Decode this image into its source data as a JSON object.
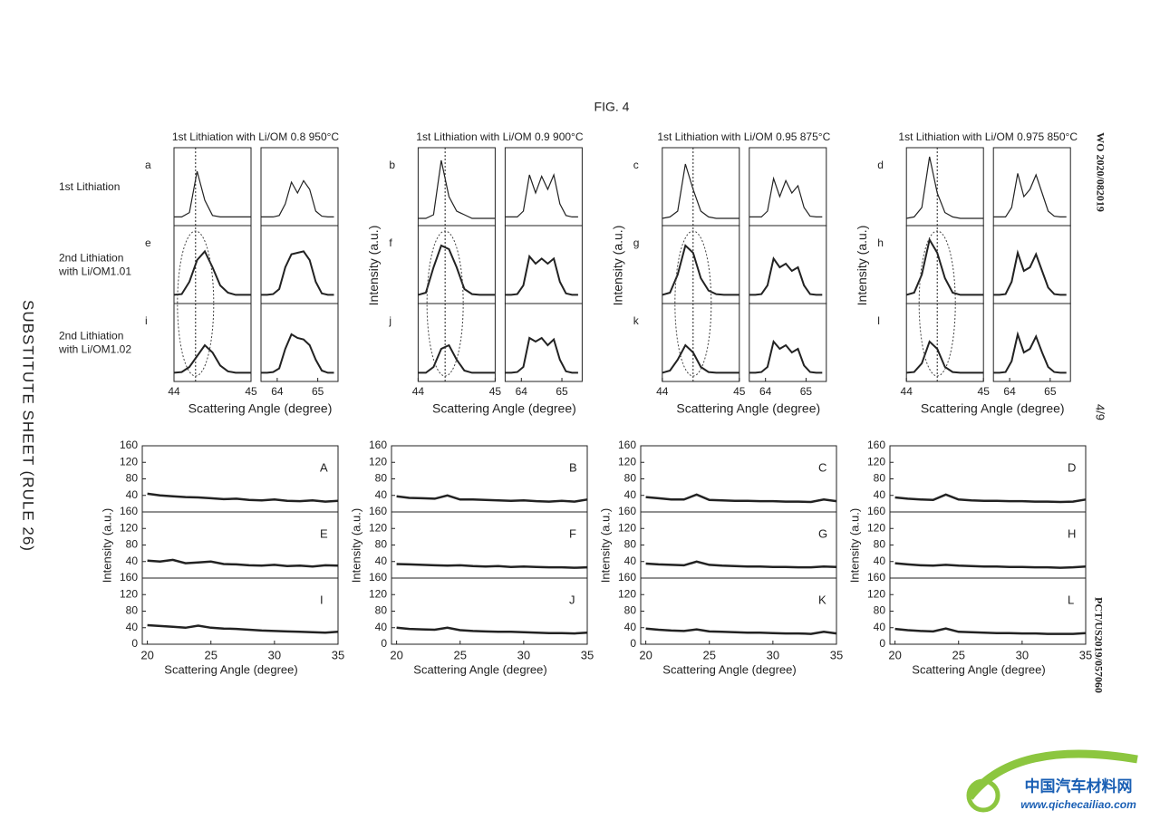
{
  "header": {
    "figure": "FIG. 4",
    "left_margin": "SUBSTITUTE SHEET (RULE 26)",
    "pub_number": "WO 2020/082019",
    "sheet": "4/9",
    "app_number": "PCT/US2019/057060"
  },
  "watermark": {
    "name": "中国汽车材料网",
    "url": "www.qichecailiao.com"
  },
  "row_labels": [
    [
      "1st Lithiation"
    ],
    [
      "2nd Lithiation",
      "with Li/OM1.01"
    ],
    [
      "2nd Lithiation",
      "with Li/OM1.02"
    ]
  ],
  "chart_data": [
    {
      "type": "line",
      "title": "1st Lithiation with Li/OM 0.8 950°C",
      "xlabel": "Scattering Angle (degree)",
      "panels": [
        "a",
        "e",
        "i"
      ],
      "color": "#222",
      "ylim": [
        0,
        1
      ],
      "ref_x": 44.28,
      "left": {
        "xlim": [
          44,
          45
        ],
        "xticks": [
          44,
          45
        ],
        "x": [
          44,
          44.1,
          44.2,
          44.3,
          44.4,
          44.5,
          44.6,
          44.7,
          44.8,
          44.9,
          45
        ],
        "series": [
          {
            "values": [
              0.12,
              0.12,
              0.18,
              0.75,
              0.35,
              0.14,
              0.12,
              0.12,
              0.12,
              0.12,
              0.12
            ]
          },
          {
            "values": [
              0.12,
              0.13,
              0.3,
              0.6,
              0.72,
              0.5,
              0.25,
              0.15,
              0.12,
              0.12,
              0.12
            ]
          },
          {
            "values": [
              0.12,
              0.13,
              0.2,
              0.35,
              0.5,
              0.4,
              0.22,
              0.14,
              0.12,
              0.12,
              0.12
            ]
          }
        ]
      },
      "right": {
        "xlim": [
          63.6,
          65.5
        ],
        "xticks": [
          64,
          65
        ],
        "x": [
          63.6,
          63.75,
          63.9,
          64.05,
          64.2,
          64.35,
          64.5,
          64.65,
          64.8,
          64.95,
          65.1,
          65.25,
          65.4
        ],
        "series": [
          {
            "values": [
              0.12,
              0.12,
              0.12,
              0.14,
              0.3,
              0.6,
              0.45,
              0.62,
              0.5,
              0.2,
              0.13,
              0.12,
              0.12
            ]
          },
          {
            "values": [
              0.12,
              0.12,
              0.13,
              0.2,
              0.5,
              0.68,
              0.7,
              0.72,
              0.6,
              0.3,
              0.14,
              0.12,
              0.12
            ]
          },
          {
            "values": [
              0.12,
              0.12,
              0.13,
              0.18,
              0.45,
              0.65,
              0.6,
              0.58,
              0.5,
              0.3,
              0.15,
              0.12,
              0.12
            ]
          }
        ]
      }
    },
    {
      "type": "line",
      "title": "1st Lithiation with Li/OM 0.9 900°C",
      "xlabel": "Scattering Angle (degree)",
      "ylabel": "Intensity (a.u.)",
      "panels": [
        "b",
        "f",
        "j"
      ],
      "color": "#222",
      "ylim": [
        0,
        1
      ],
      "ref_x": 44.35,
      "left": {
        "xlim": [
          44,
          45
        ],
        "xticks": [
          44,
          45
        ],
        "x": [
          44,
          44.1,
          44.2,
          44.3,
          44.4,
          44.5,
          44.6,
          44.7,
          44.8,
          44.9,
          45
        ],
        "series": [
          {
            "values": [
              0.1,
              0.1,
              0.15,
              0.9,
              0.4,
              0.2,
              0.15,
              0.1,
              0.1,
              0.1,
              0.1
            ]
          },
          {
            "values": [
              0.12,
              0.15,
              0.5,
              0.8,
              0.75,
              0.5,
              0.2,
              0.13,
              0.12,
              0.12,
              0.12
            ]
          },
          {
            "values": [
              0.12,
              0.12,
              0.2,
              0.45,
              0.5,
              0.3,
              0.15,
              0.12,
              0.12,
              0.12,
              0.12
            ]
          }
        ]
      },
      "right": {
        "xlim": [
          63.6,
          65.5
        ],
        "xticks": [
          64,
          65
        ],
        "x": [
          63.6,
          63.75,
          63.9,
          64.05,
          64.2,
          64.35,
          64.5,
          64.65,
          64.8,
          64.95,
          65.1,
          65.25,
          65.4
        ],
        "series": [
          {
            "values": [
              0.12,
              0.12,
              0.12,
              0.2,
              0.7,
              0.45,
              0.68,
              0.5,
              0.7,
              0.3,
              0.14,
              0.12,
              0.12
            ]
          },
          {
            "values": [
              0.12,
              0.12,
              0.13,
              0.25,
              0.65,
              0.55,
              0.62,
              0.55,
              0.62,
              0.3,
              0.14,
              0.12,
              0.12
            ]
          },
          {
            "values": [
              0.12,
              0.12,
              0.13,
              0.2,
              0.6,
              0.55,
              0.6,
              0.5,
              0.58,
              0.3,
              0.14,
              0.12,
              0.12
            ]
          }
        ]
      }
    },
    {
      "type": "line",
      "title": "1st Lithiation with Li/OM 0.95 875°C",
      "xlabel": "Scattering Angle (degree)",
      "ylabel": "Intensity (a.u.)",
      "panels": [
        "c",
        "g",
        "k"
      ],
      "color": "#222",
      "ylim": [
        0,
        1
      ],
      "ref_x": 44.4,
      "left": {
        "xlim": [
          44,
          45
        ],
        "xticks": [
          44,
          45
        ],
        "x": [
          44,
          44.1,
          44.2,
          44.3,
          44.4,
          44.5,
          44.6,
          44.7,
          44.8,
          44.9,
          45
        ],
        "series": [
          {
            "values": [
              0.1,
              0.12,
              0.2,
              0.85,
              0.5,
              0.2,
              0.12,
              0.1,
              0.1,
              0.1,
              0.1
            ]
          },
          {
            "values": [
              0.12,
              0.15,
              0.4,
              0.8,
              0.7,
              0.35,
              0.18,
              0.13,
              0.12,
              0.12,
              0.12
            ]
          },
          {
            "values": [
              0.12,
              0.15,
              0.3,
              0.5,
              0.4,
              0.2,
              0.13,
              0.12,
              0.12,
              0.12,
              0.12
            ]
          }
        ]
      },
      "right": {
        "xlim": [
          63.6,
          65.5
        ],
        "xticks": [
          64,
          65
        ],
        "x": [
          63.6,
          63.75,
          63.9,
          64.05,
          64.2,
          64.35,
          64.5,
          64.65,
          64.8,
          64.95,
          65.1,
          65.25,
          65.4
        ],
        "series": [
          {
            "values": [
              0.12,
              0.12,
              0.12,
              0.2,
              0.65,
              0.4,
              0.62,
              0.45,
              0.55,
              0.25,
              0.13,
              0.12,
              0.12
            ]
          },
          {
            "values": [
              0.12,
              0.12,
              0.13,
              0.25,
              0.62,
              0.5,
              0.55,
              0.45,
              0.5,
              0.25,
              0.13,
              0.12,
              0.12
            ]
          },
          {
            "values": [
              0.12,
              0.12,
              0.13,
              0.2,
              0.55,
              0.45,
              0.5,
              0.4,
              0.45,
              0.22,
              0.13,
              0.12,
              0.12
            ]
          }
        ]
      }
    },
    {
      "type": "line",
      "title": "1st Lithiation with Li/OM 0.975 850°C",
      "xlabel": "Scattering Angle (degree)",
      "ylabel": "Intensity (a.u.)",
      "panels": [
        "d",
        "h",
        "l"
      ],
      "color": "#222",
      "ylim": [
        0,
        1
      ],
      "ref_x": 44.4,
      "left": {
        "xlim": [
          44,
          45
        ],
        "xticks": [
          44,
          45
        ],
        "x": [
          44,
          44.1,
          44.2,
          44.3,
          44.4,
          44.5,
          44.6,
          44.7,
          44.8,
          44.9,
          45
        ],
        "series": [
          {
            "values": [
              0.1,
              0.12,
              0.25,
              0.95,
              0.45,
              0.18,
              0.12,
              0.1,
              0.1,
              0.1,
              0.1
            ]
          },
          {
            "values": [
              0.12,
              0.15,
              0.4,
              0.88,
              0.7,
              0.35,
              0.15,
              0.12,
              0.12,
              0.12,
              0.12
            ]
          },
          {
            "values": [
              0.12,
              0.13,
              0.25,
              0.55,
              0.45,
              0.2,
              0.13,
              0.12,
              0.12,
              0.12,
              0.12
            ]
          }
        ]
      },
      "right": {
        "xlim": [
          63.6,
          65.5
        ],
        "xticks": [
          64,
          65
        ],
        "x": [
          63.6,
          63.75,
          63.9,
          64.05,
          64.2,
          64.35,
          64.5,
          64.65,
          64.8,
          64.95,
          65.1,
          65.25,
          65.4
        ],
        "series": [
          {
            "values": [
              0.12,
              0.12,
              0.12,
              0.25,
              0.72,
              0.4,
              0.5,
              0.7,
              0.45,
              0.2,
              0.13,
              0.12,
              0.12
            ]
          },
          {
            "values": [
              0.12,
              0.12,
              0.13,
              0.3,
              0.7,
              0.45,
              0.5,
              0.68,
              0.45,
              0.22,
              0.13,
              0.12,
              0.12
            ]
          },
          {
            "values": [
              0.12,
              0.12,
              0.13,
              0.28,
              0.65,
              0.4,
              0.45,
              0.62,
              0.4,
              0.2,
              0.13,
              0.12,
              0.12
            ]
          }
        ]
      }
    },
    {
      "type": "stack",
      "xlabel": "Scattering Angle (degree)",
      "ylabel": "Intensity (a.u.)",
      "panels": [
        "A",
        "E",
        "I"
      ],
      "color": "#222",
      "xlim": [
        19.6,
        35
      ],
      "xticks": [
        20,
        25,
        30,
        35
      ],
      "ylim": [
        0,
        160
      ],
      "yticks": [
        0,
        40,
        80,
        120,
        160
      ],
      "x": [
        20,
        21,
        22,
        23,
        24,
        25,
        26,
        27,
        28,
        29,
        30,
        31,
        32,
        33,
        34,
        35
      ],
      "series": [
        {
          "values": [
            44,
            40,
            38,
            36,
            35,
            33,
            31,
            32,
            29,
            28,
            30,
            27,
            26,
            28,
            25,
            27
          ]
        },
        {
          "values": [
            42,
            40,
            44,
            36,
            38,
            40,
            34,
            33,
            31,
            30,
            32,
            29,
            30,
            28,
            31,
            30
          ]
        },
        {
          "values": [
            46,
            44,
            42,
            40,
            45,
            40,
            38,
            37,
            35,
            33,
            32,
            31,
            30,
            29,
            28,
            30
          ]
        }
      ]
    },
    {
      "type": "stack",
      "xlabel": "Scattering Angle (degree)",
      "ylabel": "Intensity (a.u.)",
      "panels": [
        "B",
        "F",
        "J"
      ],
      "color": "#222",
      "xlim": [
        19.6,
        35
      ],
      "xticks": [
        20,
        25,
        30,
        35
      ],
      "ylim": [
        0,
        160
      ],
      "yticks": [
        0,
        40,
        80,
        120,
        160
      ],
      "x": [
        20,
        21,
        22,
        23,
        24,
        25,
        26,
        27,
        28,
        29,
        30,
        31,
        32,
        33,
        34,
        35
      ],
      "series": [
        {
          "values": [
            38,
            34,
            33,
            32,
            40,
            30,
            30,
            29,
            28,
            27,
            28,
            26,
            25,
            27,
            25,
            30
          ]
        },
        {
          "values": [
            34,
            33,
            32,
            31,
            30,
            31,
            29,
            28,
            29,
            27,
            28,
            27,
            26,
            26,
            25,
            26
          ]
        },
        {
          "values": [
            40,
            37,
            36,
            35,
            40,
            34,
            32,
            31,
            30,
            30,
            29,
            28,
            27,
            27,
            26,
            28
          ]
        }
      ]
    },
    {
      "type": "stack",
      "xlabel": "Scattering Angle (degree)",
      "ylabel": "Intensity (a.u.)",
      "panels": [
        "C",
        "G",
        "K"
      ],
      "color": "#222",
      "xlim": [
        19.6,
        35
      ],
      "xticks": [
        20,
        25,
        30,
        35
      ],
      "ylim": [
        0,
        160
      ],
      "yticks": [
        0,
        40,
        80,
        120,
        160
      ],
      "x": [
        20,
        21,
        22,
        23,
        24,
        25,
        26,
        27,
        28,
        29,
        30,
        31,
        32,
        33,
        34,
        35
      ],
      "series": [
        {
          "values": [
            36,
            33,
            30,
            30,
            42,
            29,
            28,
            27,
            27,
            26,
            26,
            25,
            25,
            24,
            30,
            26
          ]
        },
        {
          "values": [
            35,
            33,
            32,
            31,
            40,
            32,
            30,
            29,
            28,
            28,
            27,
            27,
            26,
            26,
            28,
            27
          ]
        },
        {
          "values": [
            38,
            35,
            33,
            32,
            36,
            31,
            30,
            29,
            28,
            28,
            27,
            26,
            26,
            25,
            30,
            26
          ]
        }
      ]
    },
    {
      "type": "stack",
      "xlabel": "Scattering Angle (degree)",
      "ylabel": "Intensity (a.u.)",
      "panels": [
        "D",
        "H",
        "L"
      ],
      "color": "#222",
      "xlim": [
        19.6,
        35
      ],
      "xticks": [
        20,
        25,
        30,
        35
      ],
      "ylim": [
        0,
        160
      ],
      "yticks": [
        0,
        40,
        80,
        120,
        160
      ],
      "x": [
        20,
        21,
        22,
        23,
        24,
        25,
        26,
        27,
        28,
        29,
        30,
        31,
        32,
        33,
        34,
        35
      ],
      "series": [
        {
          "values": [
            35,
            32,
            30,
            29,
            42,
            30,
            28,
            27,
            27,
            26,
            26,
            25,
            25,
            24,
            25,
            30
          ]
        },
        {
          "values": [
            36,
            33,
            31,
            30,
            32,
            30,
            29,
            28,
            28,
            27,
            27,
            26,
            26,
            25,
            26,
            28
          ]
        },
        {
          "values": [
            37,
            34,
            32,
            31,
            38,
            30,
            29,
            28,
            27,
            27,
            26,
            26,
            25,
            25,
            25,
            27
          ]
        }
      ]
    }
  ]
}
